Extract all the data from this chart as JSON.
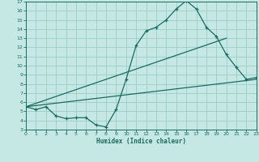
{
  "background_color": "#c5e8e5",
  "grid_color": "#9cccc8",
  "line_color": "#1a6b5e",
  "xlabel": "Humidex (Indice chaleur)",
  "xlim": [
    0,
    23
  ],
  "ylim": [
    3,
    17
  ],
  "xticks": [
    0,
    1,
    2,
    3,
    4,
    5,
    6,
    7,
    8,
    9,
    10,
    11,
    12,
    13,
    14,
    15,
    16,
    17,
    18,
    19,
    20,
    21,
    22,
    23
  ],
  "yticks": [
    3,
    4,
    5,
    6,
    7,
    8,
    9,
    10,
    11,
    12,
    13,
    14,
    15,
    16,
    17
  ],
  "series1_x": [
    0,
    1,
    2,
    3,
    4,
    5,
    6,
    7,
    8,
    9,
    10,
    11,
    12,
    13,
    14,
    15,
    16,
    17,
    18,
    19,
    20,
    21,
    22,
    23
  ],
  "series1_y": [
    5.5,
    5.2,
    5.5,
    4.5,
    4.2,
    4.3,
    4.3,
    3.5,
    3.3,
    5.2,
    8.5,
    12.2,
    13.8,
    14.2,
    15.0,
    16.2,
    17.1,
    16.2,
    14.2,
    13.2,
    11.2,
    9.8,
    8.5,
    8.7
  ],
  "series2_x": [
    0,
    23
  ],
  "series2_y": [
    5.5,
    8.5
  ],
  "series3_x": [
    0,
    20
  ],
  "series3_y": [
    5.5,
    13.0
  ]
}
